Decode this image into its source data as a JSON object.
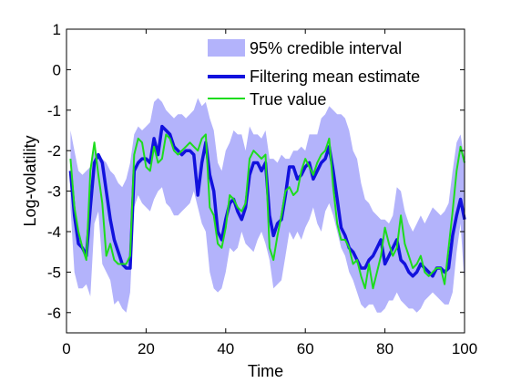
{
  "chart_data": {
    "type": "line",
    "xlabel": "Time",
    "ylabel": "Log-volatility",
    "xlim": [
      0,
      100
    ],
    "ylim": [
      -6.5,
      1
    ],
    "xticks": [
      0,
      20,
      40,
      60,
      80,
      100
    ],
    "yticks": [
      1,
      0,
      -1,
      -2,
      -3,
      -4,
      -5,
      -6
    ],
    "grid": false,
    "legend_position": "top-right",
    "x": [
      1,
      2,
      3,
      4,
      5,
      6,
      7,
      8,
      9,
      10,
      11,
      12,
      13,
      14,
      15,
      16,
      17,
      18,
      19,
      20,
      21,
      22,
      23,
      24,
      25,
      26,
      27,
      28,
      29,
      30,
      31,
      32,
      33,
      34,
      35,
      36,
      37,
      38,
      39,
      40,
      41,
      42,
      43,
      44,
      45,
      46,
      47,
      48,
      49,
      50,
      51,
      52,
      53,
      54,
      55,
      56,
      57,
      58,
      59,
      60,
      61,
      62,
      63,
      64,
      65,
      66,
      67,
      68,
      69,
      70,
      71,
      72,
      73,
      74,
      75,
      76,
      77,
      78,
      79,
      80,
      81,
      82,
      83,
      84,
      85,
      86,
      87,
      88,
      89,
      90,
      91,
      92,
      93,
      94,
      95,
      96,
      97,
      98,
      99,
      100
    ],
    "interval": {
      "name": "95% credible interval",
      "color": "#b3b3fb",
      "upper": [
        -1.5,
        -2.0,
        -2.5,
        -2.6,
        -2.5,
        -2.4,
        -2.0,
        -2.1,
        -2.2,
        -2.3,
        -2.5,
        -2.6,
        -2.8,
        -2.9,
        -2.7,
        -2.3,
        -1.6,
        -1.4,
        -1.5,
        -1.4,
        -1.3,
        -0.8,
        -0.7,
        -0.8,
        -1.0,
        -1.1,
        -1.2,
        -1.1,
        -1.1,
        -1.2,
        -1.1,
        -1.0,
        -0.7,
        -0.9,
        -0.8,
        -1.2,
        -1.5,
        -2.3,
        -2.5,
        -2.0,
        -1.8,
        -1.5,
        -1.6,
        -1.6,
        -2.0,
        -1.4,
        -1.6,
        -1.6,
        -1.7,
        -1.5,
        -2.2,
        -2.2,
        -2.3,
        -2.1,
        -2.2,
        -2.2,
        -2.0,
        -2.0,
        -1.9,
        -2.0,
        -1.6,
        -1.6,
        -1.6,
        -1.2,
        -1.1,
        -0.9,
        -1.0,
        -1.1,
        -1.1,
        -1.2,
        -1.5,
        -2.0,
        -2.2,
        -2.8,
        -3.2,
        -3.3,
        -3.5,
        -3.6,
        -3.7,
        -3.7,
        -3.8,
        -3.6,
        -2.9,
        -3.0,
        -3.5,
        -3.8,
        -4.0,
        -3.8,
        -3.6,
        -3.8,
        -3.6,
        -3.4,
        -3.5,
        -3.6,
        -3.5,
        -3.3,
        -2.5,
        -1.8,
        -1.6,
        -2.2
      ],
      "lower": [
        -3.4,
        -5.0,
        -5.4,
        -5.4,
        -5.3,
        -5.6,
        -3.8,
        -3.5,
        -4.8,
        -5.0,
        -5.2,
        -5.8,
        -5.7,
        -5.9,
        -6.0,
        -5.5,
        -3.4,
        -3.1,
        -3.3,
        -3.4,
        -3.5,
        -3.2,
        -3.0,
        -2.9,
        -3.3,
        -3.4,
        -3.6,
        -3.6,
        -3.5,
        -3.4,
        -3.3,
        -3.0,
        -3.4,
        -3.8,
        -4.0,
        -5.0,
        -5.4,
        -5.5,
        -5.4,
        -5.0,
        -4.4,
        -4.5,
        -4.4,
        -4.0,
        -4.3,
        -4.4,
        -4.5,
        -4.2,
        -4.0,
        -4.3,
        -4.7,
        -5.4,
        -5.3,
        -5.2,
        -4.6,
        -4.0,
        -4.2,
        -4.0,
        -4.2,
        -3.9,
        -3.7,
        -3.4,
        -3.8,
        -4.0,
        -3.5,
        -3.3,
        -3.6,
        -4.0,
        -4.4,
        -4.6,
        -5.0,
        -5.2,
        -5.5,
        -5.8,
        -5.9,
        -5.8,
        -5.8,
        -6.0,
        -6.0,
        -5.9,
        -5.7,
        -5.7,
        -5.5,
        -5.7,
        -5.8,
        -5.9,
        -5.9,
        -6.0,
        -5.9,
        -5.7,
        -5.6,
        -5.5,
        -5.6,
        -5.7,
        -5.8,
        -5.8,
        -5.5,
        -4.5,
        -3.8,
        -5.3
      ]
    },
    "series": [
      {
        "name": "Filtering mean estimate",
        "color": "#1212dd",
        "values": [
          -2.5,
          -3.6,
          -4.3,
          -4.4,
          -4.6,
          -3.4,
          -2.3,
          -2.1,
          -2.3,
          -3.0,
          -3.7,
          -4.2,
          -4.5,
          -4.8,
          -4.9,
          -4.9,
          -2.5,
          -2.3,
          -2.2,
          -2.2,
          -2.3,
          -1.7,
          -2.1,
          -1.4,
          -1.5,
          -1.6,
          -1.9,
          -2.0,
          -2.1,
          -2.0,
          -2.0,
          -2.1,
          -3.1,
          -2.3,
          -1.8,
          -2.6,
          -3.0,
          -4.0,
          -4.2,
          -3.7,
          -3.3,
          -3.2,
          -3.5,
          -3.7,
          -3.4,
          -2.6,
          -2.3,
          -2.3,
          -2.5,
          -2.3,
          -3.6,
          -4.1,
          -3.8,
          -3.7,
          -3.1,
          -2.4,
          -2.4,
          -2.7,
          -2.6,
          -2.4,
          -2.3,
          -2.7,
          -2.5,
          -2.3,
          -2.2,
          -1.9,
          -2.5,
          -3.2,
          -3.9,
          -4.1,
          -4.4,
          -4.5,
          -4.7,
          -4.9,
          -4.9,
          -4.7,
          -4.6,
          -4.4,
          -4.2,
          -4.8,
          -4.6,
          -4.4,
          -4.2,
          -4.7,
          -4.8,
          -5.0,
          -5.1,
          -5.0,
          -4.8,
          -4.9,
          -5.0,
          -5.1,
          -4.9,
          -4.9,
          -5.0,
          -4.9,
          -4.1,
          -3.6,
          -3.2,
          -3.7
        ]
      },
      {
        "name": "True value",
        "color": "#1ddc1d",
        "values": [
          -2.2,
          -3.4,
          -4.0,
          -4.4,
          -4.7,
          -2.5,
          -1.8,
          -2.6,
          -3.3,
          -4.6,
          -4.3,
          -4.7,
          -4.8,
          -4.8,
          -4.8,
          -4.6,
          -2.1,
          -1.7,
          -1.8,
          -2.4,
          -2.5,
          -1.9,
          -2.3,
          -2.2,
          -1.6,
          -1.7,
          -2.0,
          -2.1,
          -2.0,
          -1.9,
          -1.8,
          -1.9,
          -2.0,
          -1.7,
          -1.6,
          -3.4,
          -3.6,
          -4.3,
          -4.4,
          -3.9,
          -3.1,
          -3.2,
          -3.4,
          -3.5,
          -3.3,
          -2.2,
          -2.0,
          -2.1,
          -2.2,
          -2.1,
          -4.4,
          -4.7,
          -4.1,
          -3.6,
          -3.0,
          -2.9,
          -3.1,
          -3.0,
          -2.5,
          -2.2,
          -2.4,
          -2.6,
          -2.3,
          -2.1,
          -2.0,
          -1.7,
          -2.9,
          -3.8,
          -4.2,
          -4.2,
          -4.4,
          -4.8,
          -4.7,
          -5.1,
          -5.4,
          -4.8,
          -5.4,
          -5.0,
          -4.6,
          -3.9,
          -4.3,
          -4.6,
          -4.4,
          -3.6,
          -4.3,
          -4.6,
          -4.9,
          -4.8,
          -4.6,
          -5.0,
          -5.1,
          -5.0,
          -4.9,
          -4.9,
          -5.3,
          -4.4,
          -3.5,
          -2.5,
          -1.9,
          -2.3
        ]
      }
    ]
  }
}
